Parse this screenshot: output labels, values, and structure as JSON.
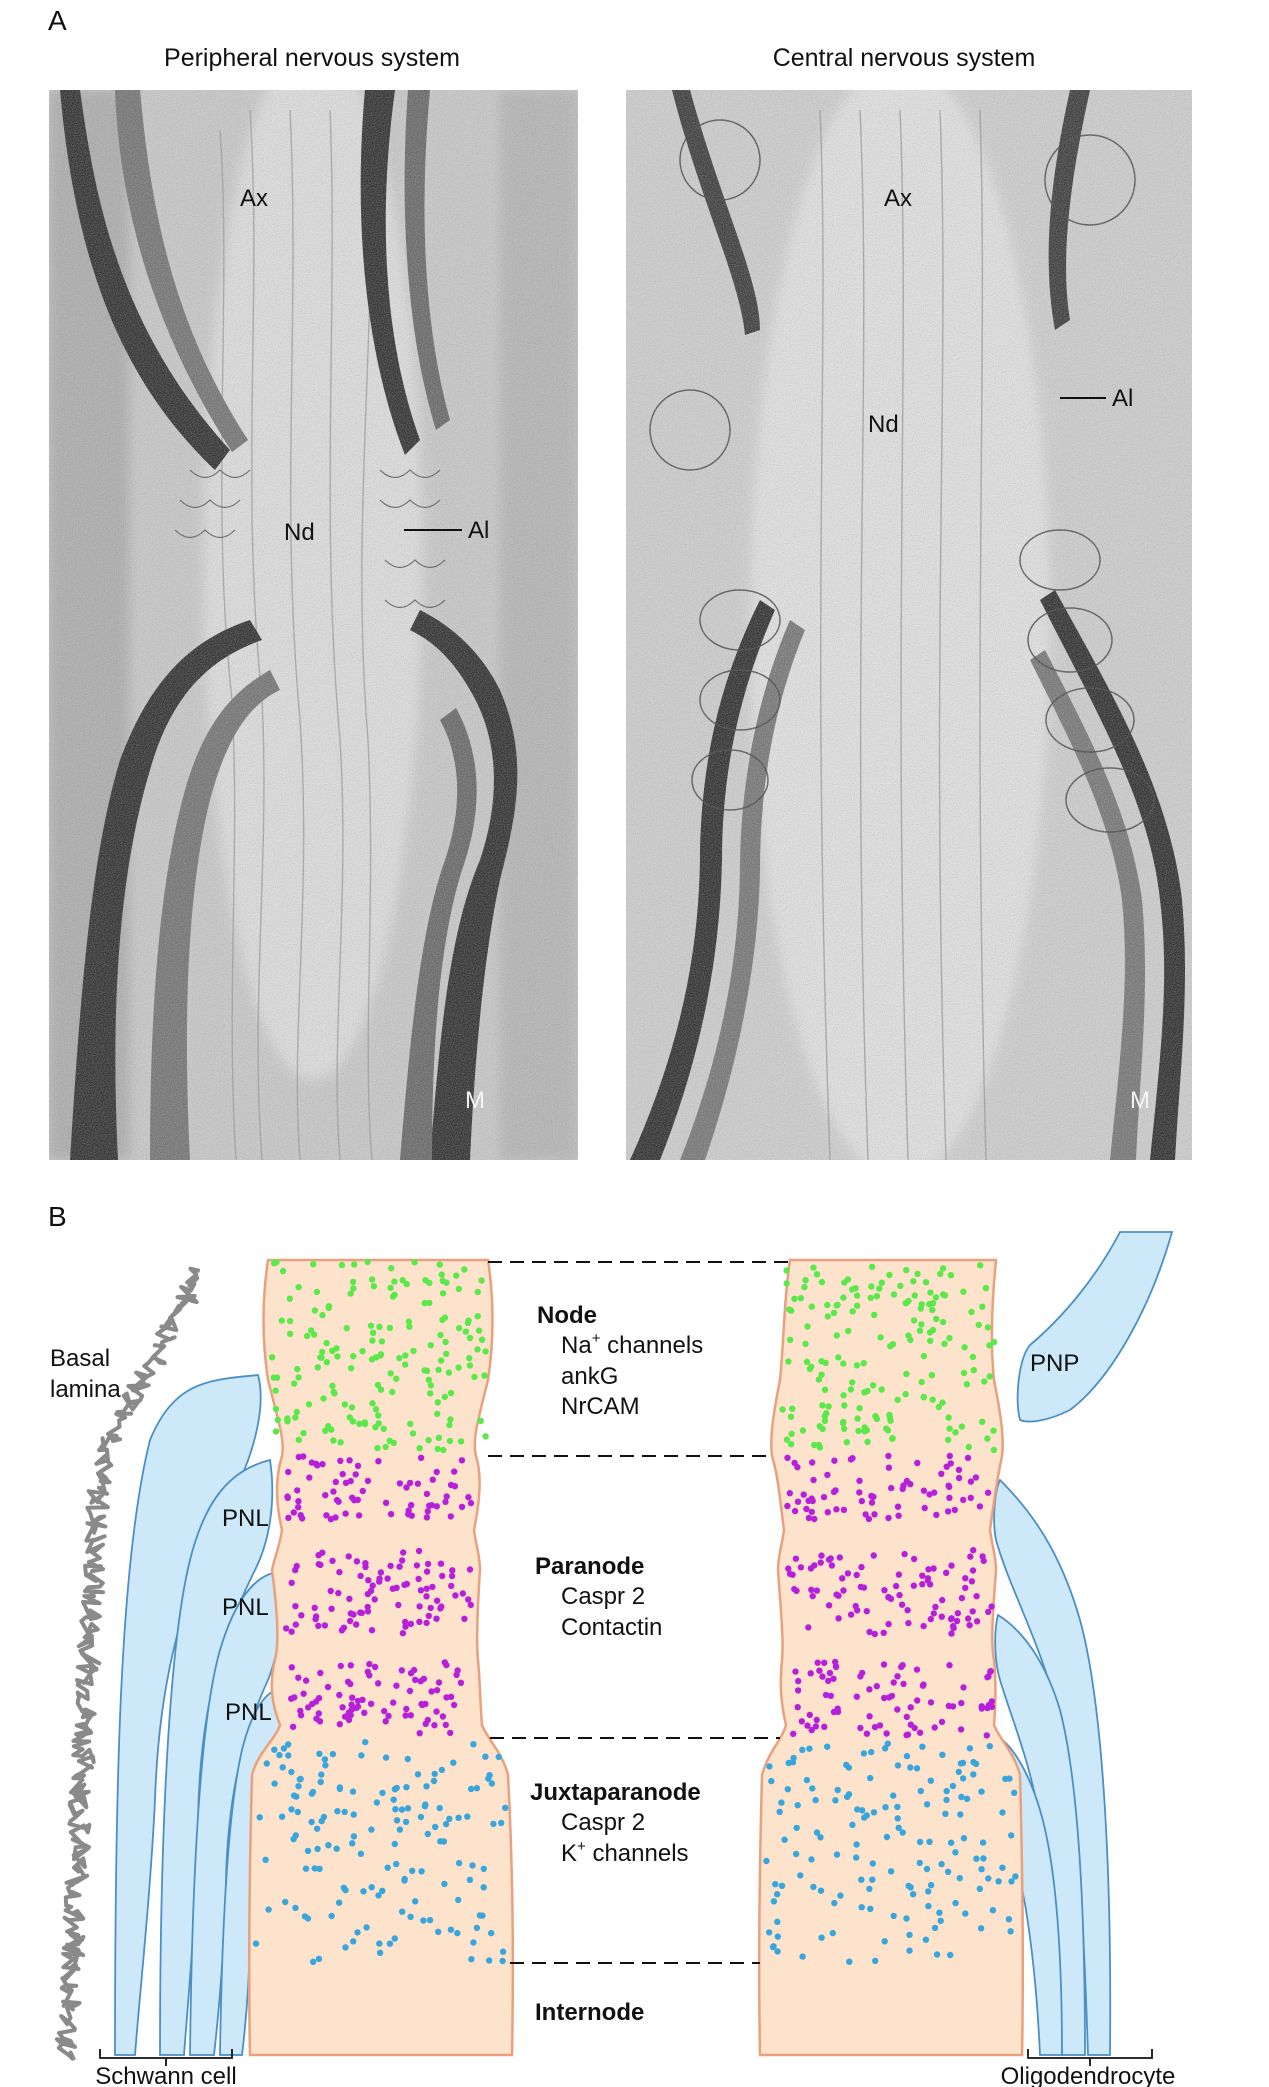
{
  "panel_a": {
    "letter": "A",
    "pns": {
      "title": "Peripheral nervous system",
      "labels": {
        "axon": "Ax",
        "node": "Nd",
        "axolemma": "Al",
        "myelin": "M"
      }
    },
    "cns": {
      "title": "Central nervous system",
      "labels": {
        "axon": "Ax",
        "node": "Nd",
        "axolemma": "Al",
        "myelin": "M"
      }
    }
  },
  "panel_b": {
    "letter": "B",
    "left_labels": {
      "basal_lamina_1": "Basal",
      "basal_lamina_2": "lamina",
      "pnl_1": "PNL",
      "pnl_2": "PNL",
      "pnl_3": "PNL",
      "schwann_cell": "Schwann cell"
    },
    "right_labels": {
      "pnp": "PNP",
      "oligodendrocyte": "Oligodendrocyte"
    },
    "regions": {
      "node": {
        "title": "Node",
        "na_prefix": "Na",
        "na_sup": "+",
        "na_suffix": " channels",
        "line2": "ankG",
        "line3": "NrCAM"
      },
      "paranode": {
        "title": "Paranode",
        "line1": "Caspr 2",
        "line2": "Contactin"
      },
      "juxtaparanode": {
        "title": "Juxtaparanode",
        "line1": "Caspr 2",
        "k_prefix": "K",
        "k_sup": "+",
        "k_suffix": " channels"
      },
      "internode": {
        "title": "Internode"
      }
    },
    "colors": {
      "axon_fill": "#fde3cc",
      "axon_edge": "#e9a07f",
      "node_dots": "#5be84a",
      "paranode_dots": "#b620d8",
      "juxta_dots": "#38a6dd",
      "glia_fill": "#cde9f9",
      "glia_edge": "#4c8fc4",
      "basal_lamina": "#8a8a8a"
    }
  }
}
